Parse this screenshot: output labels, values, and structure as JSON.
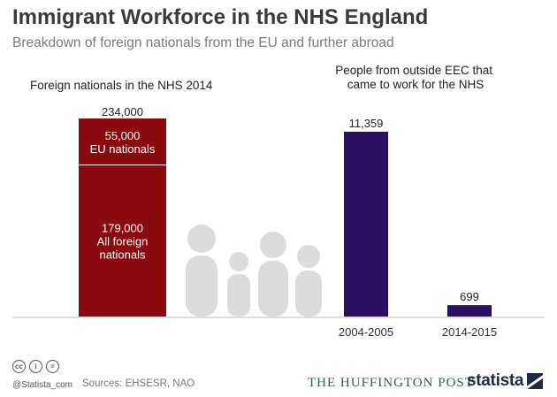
{
  "header": {
    "title": "Immigrant Workforce in the NHS England",
    "subtitle": "Breakdown of foreign nationals from the EU and further abroad"
  },
  "chart_data": [
    {
      "type": "bar",
      "stacked": true,
      "title": "Foreign nationals in the NHS 2014",
      "total_label": "234,000",
      "total": 234000,
      "segments": [
        {
          "value": 179000,
          "label_value": "179,000",
          "label_lines": [
            "All foreign",
            "nationals"
          ],
          "color": "#8b0a0f"
        },
        {
          "value": 55000,
          "label_value": "55,000",
          "label_lines": [
            "EU nationals"
          ],
          "color": "#8b0a0f"
        }
      ]
    },
    {
      "type": "bar",
      "title_lines": [
        "People from outside EEC that",
        "came to work for the NHS"
      ],
      "categories": [
        "2004-2005",
        "2014-2015"
      ],
      "values": [
        11359,
        699
      ],
      "value_labels": [
        "11,359",
        "699"
      ],
      "color": "#2b0f63",
      "ylim": [
        0,
        11359
      ]
    }
  ],
  "footer": {
    "cc_icons": [
      "cc-icon",
      "by-icon",
      "nd-icon"
    ],
    "cc_glyphs": [
      "cc",
      "i",
      "="
    ],
    "handle": "@Statista_com",
    "sources": "Sources: EHSESR, NAO",
    "partner": "THE HUFFINGTON POST",
    "brand": "statista"
  }
}
